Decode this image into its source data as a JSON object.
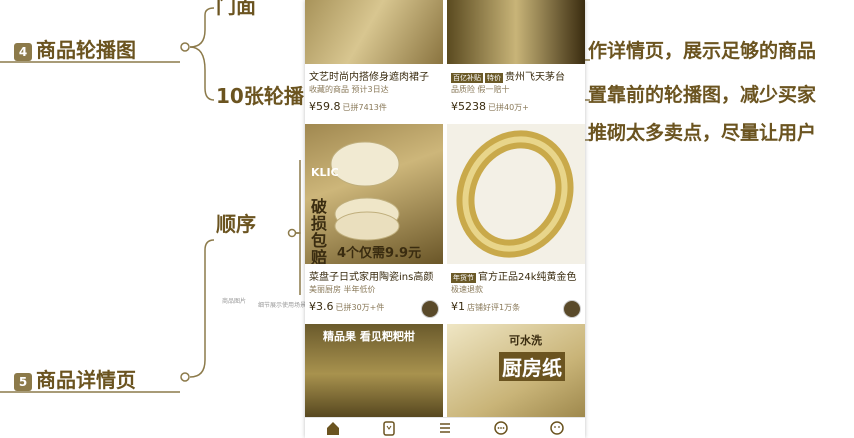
{
  "mindmap": {
    "node_carousel": {
      "badge": "4",
      "label": "商品轮播图"
    },
    "node_detail": {
      "badge": "5",
      "label": "商品详情页"
    },
    "node_order": "顺序",
    "node_ten": "10张轮播",
    "node_door": "门面",
    "right_lines": [
      "作详情页，展示足够的商品",
      "置靠前的轮播图，减少买家",
      "推砌太多卖点，尽量让用户"
    ],
    "mini_labels": [
      "商品图片",
      "细节展示",
      "使用场景"
    ]
  },
  "phone": {
    "products": [
      {
        "title": "文艺时尚内搭修身遮肉裙子",
        "meta": "收藏的商品  预计3日达",
        "price": "59.8",
        "sold": "已拼7413件",
        "currency": "¥"
      },
      {
        "title": "贵州飞天茅台",
        "tags": [
          "百亿补贴",
          "特价"
        ],
        "meta": "品质险  假一赔十",
        "price": "5238",
        "sold": "已拼40万+",
        "currency": "¥"
      },
      {
        "title": "菜盘子日式家用陶瓷ins高颜",
        "meta": "美丽厨房  半年低价",
        "price": "3.6",
        "sold": "已拼30万+件",
        "currency": "¥",
        "overlay_big": "破损包赔",
        "overlay_small": "4个仅需9.9元",
        "brand": "KLIC"
      },
      {
        "title": "官方正品24k纯黄金色",
        "tags": [
          "年货节"
        ],
        "meta": "极速退款",
        "price": "1",
        "sold": "店铺好评1万条",
        "currency": "¥"
      },
      {
        "title": "",
        "meta": "",
        "price": "",
        "sold": "",
        "overlay_top": "精品果 看见粑粑柑"
      },
      {
        "title": "",
        "meta": "",
        "price": "",
        "sold": "",
        "overlay_top": "可水洗",
        "overlay_big": "厨房纸"
      }
    ],
    "tabs": [
      "home-icon",
      "coupon-icon",
      "list-icon",
      "chat-icon",
      "profile-icon"
    ]
  }
}
